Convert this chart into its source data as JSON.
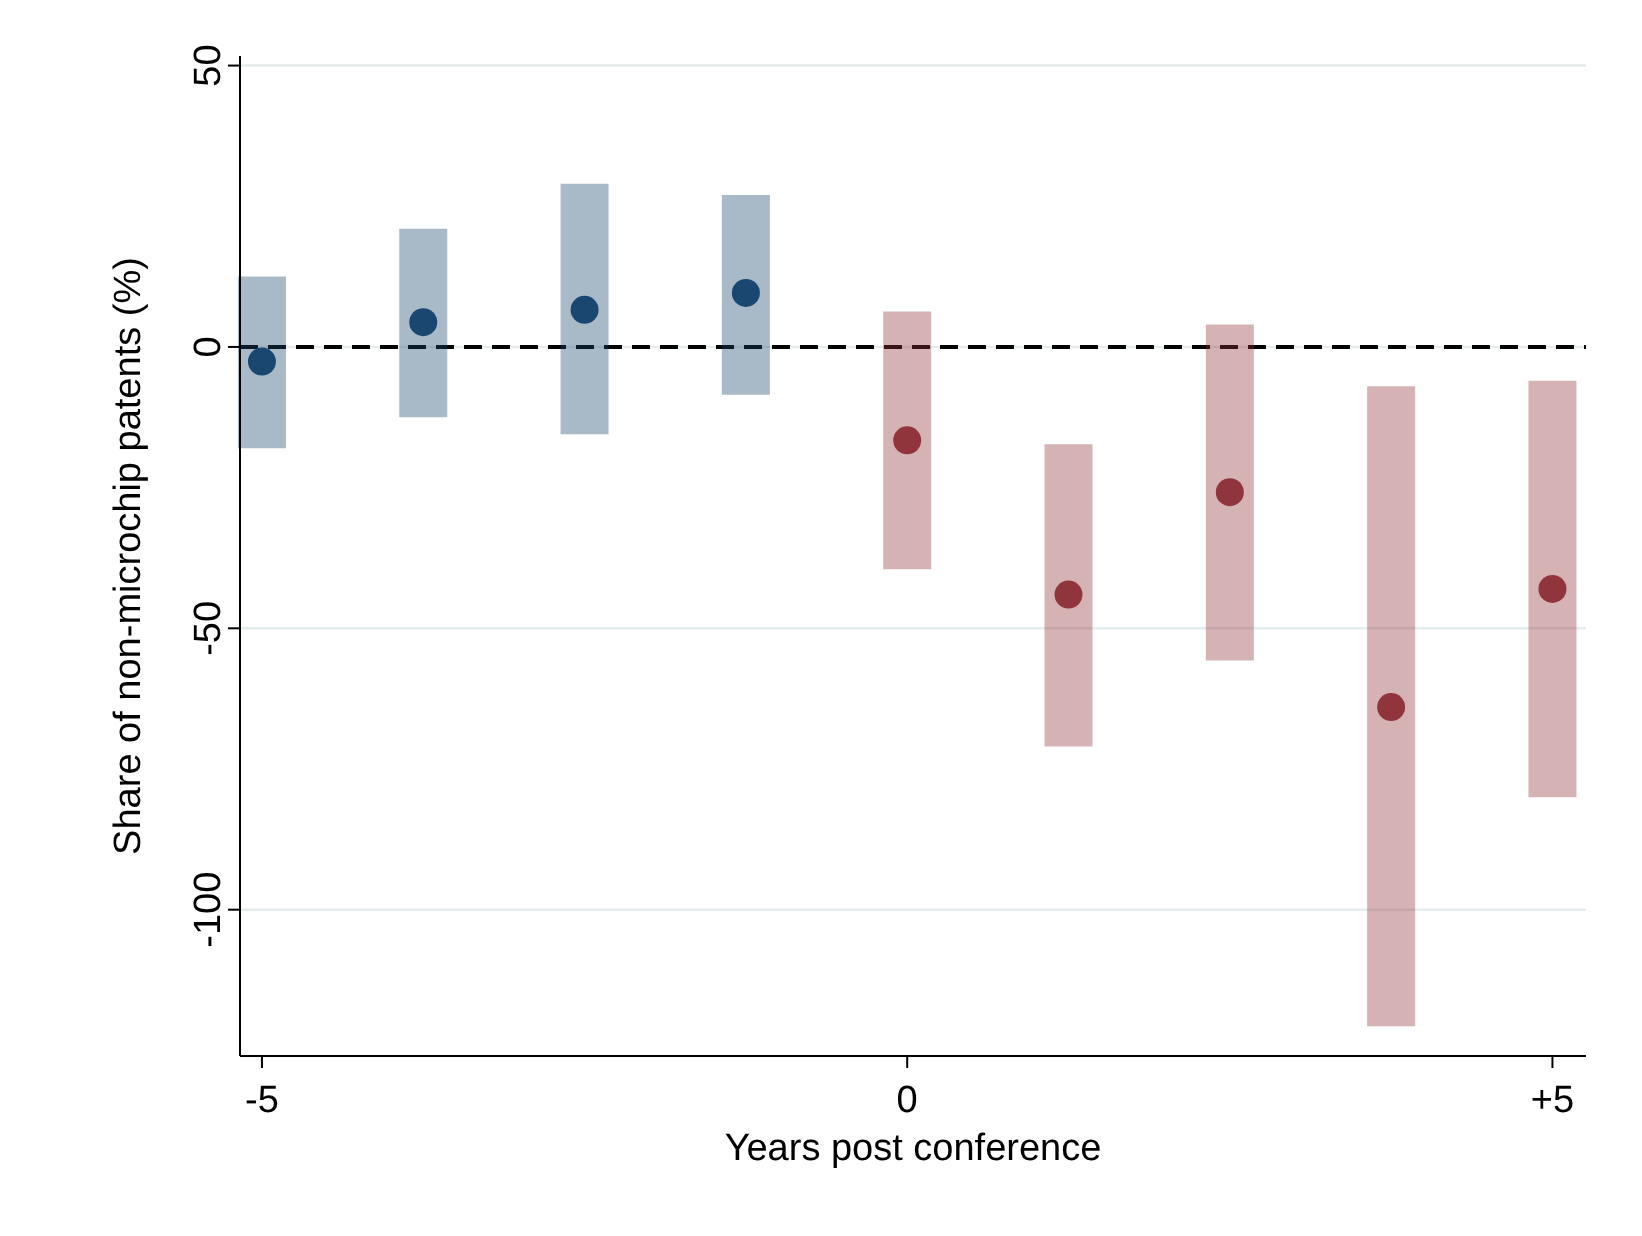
{
  "chart_data": {
    "type": "scatter",
    "xlabel": "Years post conference",
    "ylabel": "Share of non-microchip patents (%)",
    "xlim": [
      -5.17,
      5.26
    ],
    "xticks": [
      -5,
      0,
      {
        "value": 5,
        "label": "+5"
      }
    ],
    "ylim": [
      -126,
      51.7
    ],
    "yticks": [
      -100,
      -50,
      0,
      50
    ],
    "grid": "y",
    "marker": "circle",
    "ref_lines": [
      {
        "axis": "y",
        "value": 0,
        "color": "#000000",
        "line_style": "dashed"
      }
    ],
    "series": [
      {
        "color": "#1a476f",
        "x": [
          -5,
          -3.75,
          -2.5,
          -1.25
        ],
        "values": [
          -2.6,
          4.4,
          6.6,
          9.6
        ],
        "errors": [
          [
            -18,
            12.5
          ],
          [
            -12.5,
            21
          ],
          [
            -15.5,
            29
          ],
          [
            -8.5,
            27
          ]
        ]
      },
      {
        "color": "#90353b",
        "x": [
          0,
          1.25,
          2.5,
          3.75,
          5
        ],
        "values": [
          -16.6,
          -44,
          -25.8,
          -64,
          -43
        ],
        "errors": [
          [
            -39.5,
            6.3
          ],
          [
            -71,
            -17.3
          ],
          [
            -55.7,
            4
          ],
          [
            -120.7,
            -7
          ],
          [
            -80,
            -6
          ]
        ]
      }
    ]
  }
}
